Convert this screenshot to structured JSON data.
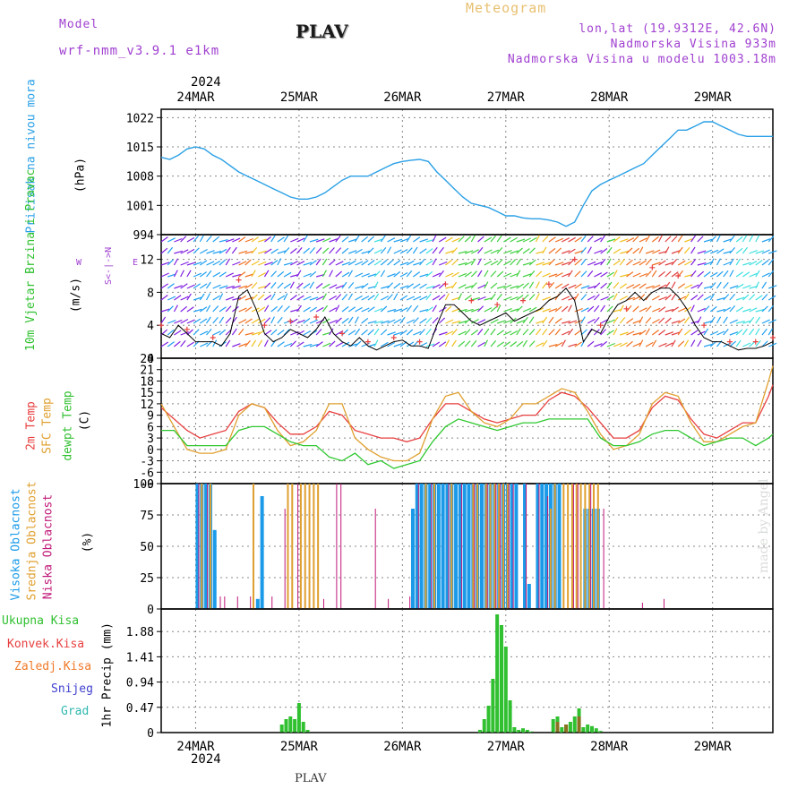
{
  "header": {
    "model_label": "Model",
    "model_name": "wrf-nmm_v3.9.1 e1km",
    "station": "PLAV",
    "meteogram": "Meteogram",
    "lonlat": "lon,lat (19.9312E, 42.6N)",
    "altitude": "Nadmorska Visina 933m",
    "model_altitude": "Nadmorska Visina u modelu 1003.18m",
    "year_top": "2024",
    "year_bottom": "2024",
    "footer_station": "PLAV",
    "credit": "made by Angel"
  },
  "colors": {
    "pressure": "#2aa0e6",
    "temp2m": "#e84040",
    "sfc": "#e0a030",
    "dewpt": "#30c830",
    "wind": "#000000",
    "gust": "#e84040",
    "high_cloud": "#1a9ae8",
    "mid_cloud": "#e0a030",
    "low_cloud": "#c01878",
    "total_precip": "#30c030",
    "conv_precip": "#e84040",
    "frozen": "#f07828",
    "snow": "#4040d0",
    "grad": "#30b8b0",
    "axis": "#000000",
    "grid": "#888888"
  },
  "chart_data": [
    {
      "type": "line",
      "panel": "pressure",
      "ylabel": "Pritisak na nivou mora",
      "unit": "(hPa)",
      "ylim": [
        994,
        1024
      ],
      "yticks": [
        994,
        1001,
        1008,
        1015,
        1022
      ],
      "days": [
        "24MAR",
        "25MAR",
        "26MAR",
        "27MAR",
        "28MAR",
        "29MAR"
      ],
      "series": [
        {
          "x": [
            0,
            2,
            4,
            6,
            8,
            10,
            12,
            14,
            16,
            18,
            20,
            22,
            24,
            26,
            28,
            30,
            32,
            34,
            36,
            38,
            40,
            42,
            44,
            46,
            48,
            50,
            52,
            54,
            56,
            58,
            60,
            62,
            64,
            66,
            68,
            70,
            72,
            74,
            76,
            78,
            80,
            82,
            84,
            86,
            88,
            90,
            92,
            94,
            96,
            98,
            100,
            102,
            104,
            106,
            108,
            110,
            112,
            114,
            116,
            118,
            120,
            122,
            124,
            126,
            128,
            130,
            132,
            134,
            136,
            138,
            140,
            142
          ],
          "y": [
            1012.5,
            1012,
            1013,
            1014.5,
            1015,
            1014.5,
            1013,
            1012,
            1010.5,
            1009,
            1008,
            1007,
            1006,
            1005,
            1004,
            1003,
            1002.5,
            1002.5,
            1003,
            1004,
            1005.5,
            1007,
            1008,
            1008,
            1008,
            1009,
            1010,
            1011,
            1011.5,
            1011.8,
            1012,
            1011.5,
            1009,
            1007,
            1005,
            1003,
            1001.5,
            1001,
            1000.5,
            999.5,
            998.5,
            998.5,
            998,
            997.8,
            997.8,
            997.5,
            997,
            996,
            997,
            1001,
            1004.5,
            1006,
            1007,
            1008,
            1009,
            1010,
            1011,
            1013,
            1015,
            1017,
            1019,
            1019,
            1020,
            1021,
            1021,
            1020,
            1019,
            1018,
            1017.5,
            1017.5,
            1017.5,
            1017.5
          ]
        }
      ]
    },
    {
      "type": "line",
      "panel": "wind",
      "ylabel": "10m Vjetar Brzina i Pravac",
      "unit": "(m/s)",
      "ylim": [
        0,
        15
      ],
      "yticks": [
        0,
        4,
        8,
        12
      ],
      "compass": {
        "n": "N",
        "s": "S",
        "e": "E",
        "w": "W"
      },
      "series": [
        {
          "name": "speed",
          "x": [
            0,
            2,
            4,
            6,
            8,
            10,
            12,
            14,
            16,
            18,
            20,
            22,
            24,
            26,
            28,
            30,
            32,
            34,
            36,
            38,
            40,
            42,
            44,
            46,
            48,
            50,
            52,
            54,
            56,
            58,
            60,
            62,
            64,
            66,
            68,
            70,
            72,
            74,
            76,
            78,
            80,
            82,
            84,
            86,
            88,
            90,
            92,
            94,
            96,
            98,
            100,
            102,
            104,
            106,
            108,
            110,
            112,
            114,
            116,
            118,
            120,
            122,
            124,
            126,
            128,
            130,
            132,
            134,
            136,
            138,
            140,
            142
          ],
          "y": [
            3,
            2.5,
            4,
            3,
            2,
            2,
            2,
            1.5,
            3,
            7.5,
            8.3,
            6,
            3,
            2,
            2.5,
            3.5,
            3,
            2.5,
            3.5,
            5,
            3,
            2,
            1.5,
            2.5,
            1.5,
            1,
            1.5,
            2,
            2.2,
            1.5,
            1.5,
            1.2,
            4,
            6.5,
            6.5,
            5.5,
            4.5,
            4,
            4.5,
            5,
            5.5,
            4.5,
            5,
            5.5,
            6,
            7,
            7.5,
            8.5,
            7,
            2,
            3.5,
            3,
            5,
            6.5,
            7,
            8,
            7,
            8,
            8.5,
            8.5,
            7.5,
            6,
            4,
            2.5,
            2,
            2,
            1.5,
            1,
            1.2,
            1.2,
            1.5,
            2
          ]
        },
        {
          "name": "gust",
          "x": [
            0,
            6,
            12,
            18,
            24,
            30,
            36,
            42,
            48,
            54,
            60,
            66,
            72,
            78,
            84,
            90,
            96,
            102,
            108,
            114,
            120,
            126,
            132,
            138,
            142
          ],
          "y": [
            4,
            3.5,
            2.5,
            9.5,
            4,
            4.5,
            5,
            3,
            2,
            2.5,
            2,
            9,
            7,
            6.5,
            7,
            9,
            12,
            4,
            6,
            11,
            10,
            4,
            2,
            2,
            2.5
          ]
        }
      ]
    },
    {
      "type": "line",
      "panel": "temperature",
      "ylabel1": "2m Temp",
      "ylabel2": "SFC Temp",
      "ylabel3": "dewpt Temp",
      "unit": "(C)",
      "ylim": [
        -9,
        24
      ],
      "yticks": [
        -9,
        -6,
        -3,
        0,
        3,
        6,
        9,
        12,
        15,
        18,
        21,
        24
      ],
      "series": [
        {
          "name": "2m",
          "x": [
            0,
            3,
            6,
            9,
            12,
            15,
            18,
            21,
            24,
            27,
            30,
            33,
            36,
            39,
            42,
            45,
            48,
            51,
            54,
            57,
            60,
            63,
            66,
            69,
            72,
            75,
            78,
            81,
            84,
            87,
            90,
            93,
            96,
            99,
            102,
            105,
            108,
            111,
            114,
            117,
            120,
            123,
            126,
            129,
            132,
            135,
            138,
            141,
            142
          ],
          "y": [
            11,
            8,
            5,
            3,
            4,
            5,
            10,
            12,
            11,
            7,
            4,
            4,
            6,
            10,
            9,
            5,
            4,
            3,
            3,
            2,
            3,
            8,
            12,
            12,
            10,
            8,
            7,
            8,
            9,
            9,
            13,
            15,
            14,
            11,
            7,
            3,
            3,
            5,
            11,
            14,
            13,
            8,
            4,
            3,
            5,
            7,
            7,
            14,
            17
          ]
        },
        {
          "name": "sfc",
          "x": [
            0,
            3,
            6,
            9,
            12,
            15,
            18,
            21,
            24,
            27,
            30,
            33,
            36,
            39,
            42,
            45,
            48,
            51,
            54,
            57,
            60,
            63,
            66,
            69,
            72,
            75,
            78,
            81,
            84,
            87,
            90,
            93,
            96,
            99,
            102,
            105,
            108,
            111,
            114,
            117,
            120,
            123,
            126,
            129,
            132,
            135,
            138,
            141,
            142
          ],
          "y": [
            12,
            6,
            0,
            -1,
            -1,
            0,
            9,
            12,
            11,
            5,
            1,
            2,
            5,
            12,
            12,
            3,
            0,
            -2,
            -3,
            -3,
            -1,
            8,
            14,
            15,
            10,
            7,
            6,
            8,
            12,
            12,
            14,
            16,
            15,
            10,
            4,
            0,
            1,
            4,
            12,
            15,
            14,
            7,
            2,
            2,
            4,
            6,
            7,
            18,
            22
          ]
        },
        {
          "name": "dewpt",
          "x": [
            0,
            3,
            6,
            9,
            12,
            15,
            18,
            21,
            24,
            27,
            30,
            33,
            36,
            39,
            42,
            45,
            48,
            51,
            54,
            57,
            60,
            63,
            66,
            69,
            72,
            75,
            78,
            81,
            84,
            87,
            90,
            93,
            96,
            99,
            102,
            105,
            108,
            111,
            114,
            117,
            120,
            123,
            126,
            129,
            132,
            135,
            138,
            141,
            142
          ],
          "y": [
            5,
            5,
            1,
            1,
            1,
            1,
            5,
            6,
            6,
            4,
            2,
            1,
            1,
            -2,
            -3,
            -1,
            -4,
            -3,
            -5,
            -4,
            -3,
            2,
            6,
            8,
            7,
            6,
            5,
            6,
            7,
            7,
            8,
            8,
            8,
            8,
            3,
            1,
            1,
            2,
            4,
            5,
            5,
            3,
            1,
            2,
            3,
            3,
            1,
            3,
            4
          ]
        }
      ]
    },
    {
      "type": "bar",
      "panel": "clouds",
      "ylabel1": "Visoka Oblacnost",
      "ylabel2": "Srednja Oblacnost",
      "ylabel3": "Niska Oblacnost",
      "unit": "(%)",
      "ylim": [
        0,
        100
      ],
      "yticks": [
        0,
        25,
        50,
        75,
        100
      ],
      "high": {
        "x": [
          8,
          9,
          10,
          11,
          12,
          22,
          23,
          58,
          59,
          60,
          61,
          62,
          63,
          64,
          65,
          66,
          67,
          68,
          69,
          70,
          71,
          72,
          73,
          74,
          75,
          76,
          77,
          78,
          79,
          80,
          81,
          82,
          84,
          85,
          87,
          88,
          89,
          90,
          91,
          92,
          98,
          99,
          100,
          101
        ],
        "y": [
          100,
          100,
          100,
          100,
          63,
          8,
          90,
          80,
          100,
          100,
          100,
          100,
          100,
          100,
          100,
          100,
          100,
          100,
          100,
          100,
          100,
          100,
          100,
          100,
          100,
          100,
          100,
          100,
          100,
          100,
          100,
          100,
          100,
          20,
          100,
          100,
          100,
          100,
          100,
          100,
          80,
          80,
          80,
          80
        ]
      },
      "mid": {
        "x": [
          9,
          11,
          21,
          29,
          30,
          32,
          33,
          34,
          35,
          36,
          61,
          63,
          67,
          72,
          73,
          75,
          76,
          77,
          78,
          79,
          80,
          90,
          91,
          93,
          94,
          95,
          96,
          97,
          98,
          99,
          100,
          101
        ],
        "y": [
          100,
          100,
          100,
          100,
          100,
          100,
          100,
          100,
          100,
          100,
          100,
          100,
          100,
          100,
          100,
          100,
          100,
          100,
          100,
          100,
          100,
          80,
          100,
          100,
          100,
          100,
          100,
          100,
          100,
          100,
          100,
          100
        ]
      },
      "low": {
        "x": [
          8,
          10,
          13,
          14,
          17,
          20,
          25,
          28,
          31,
          37,
          40,
          41,
          49,
          52,
          57,
          59,
          62,
          66,
          69,
          72,
          75,
          77,
          78,
          80,
          81,
          84,
          87,
          89,
          95,
          96,
          99,
          102,
          111,
          116
        ],
        "y": [
          100,
          100,
          10,
          10,
          10,
          10,
          10,
          80,
          100,
          8,
          100,
          100,
          80,
          8,
          10,
          100,
          100,
          100,
          100,
          100,
          100,
          100,
          100,
          100,
          100,
          100,
          100,
          90,
          100,
          100,
          100,
          80,
          5,
          8
        ]
      }
    },
    {
      "type": "bar",
      "panel": "precip",
      "ylabel": "1hr Precip",
      "unit": "(mm)",
      "ylim": [
        0,
        2.3
      ],
      "yticks": [
        0,
        0.47,
        0.94,
        1.41,
        1.88
      ],
      "legend": [
        "Ukupna Kisa",
        "Konvek.Kisa",
        "Zaledj.Kisa",
        "Snijeg",
        "Grad"
      ],
      "total": {
        "x": [
          28,
          29,
          30,
          31,
          32,
          33,
          34,
          74,
          75,
          76,
          77,
          78,
          79,
          80,
          81,
          82,
          83,
          84,
          85,
          86,
          91,
          92,
          93,
          94,
          95,
          96,
          97,
          98,
          99,
          100,
          101,
          102
        ],
        "y": [
          0.15,
          0.25,
          0.3,
          0.25,
          0.55,
          0.2,
          0.05,
          0.05,
          0.25,
          0.5,
          1.0,
          2.2,
          2.0,
          1.6,
          0.6,
          0.1,
          0.05,
          0.08,
          0.05,
          0.02,
          0.25,
          0.3,
          0.1,
          0.15,
          0.2,
          0.3,
          0.45,
          0.1,
          0.15,
          0.12,
          0.08,
          0.03
        ]
      },
      "frozen": {
        "x": [
          92,
          94,
          97
        ],
        "y": [
          0.2,
          0.15,
          0.3
        ]
      }
    }
  ]
}
